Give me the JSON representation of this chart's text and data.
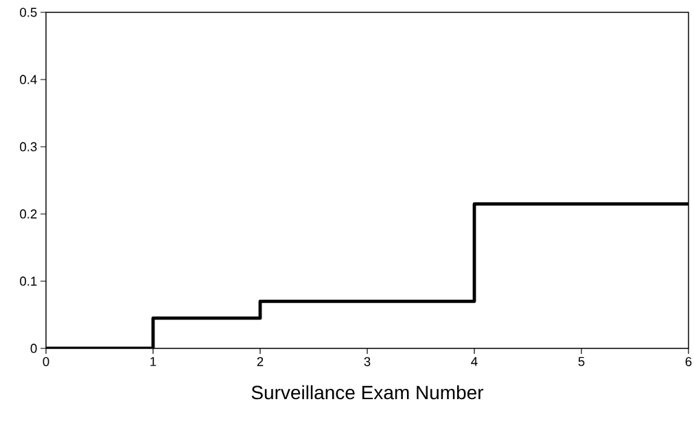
{
  "chart_data": {
    "type": "step",
    "xlabel": "Surveillance Exam Number",
    "x": [
      0,
      1,
      2,
      4,
      6
    ],
    "series": [
      {
        "color": "#000000",
        "values": [
          0,
          0.045,
          0.07,
          0.215,
          0.215
        ]
      }
    ],
    "xlim": [
      0,
      6
    ],
    "xticks": [
      0,
      1,
      2,
      3,
      4,
      5,
      6
    ],
    "ylim": [
      0,
      0.5
    ],
    "yticks": [
      0,
      0.1,
      0.2,
      0.3,
      0.4,
      0.5
    ],
    "marker": "none",
    "line_style": "solid"
  }
}
